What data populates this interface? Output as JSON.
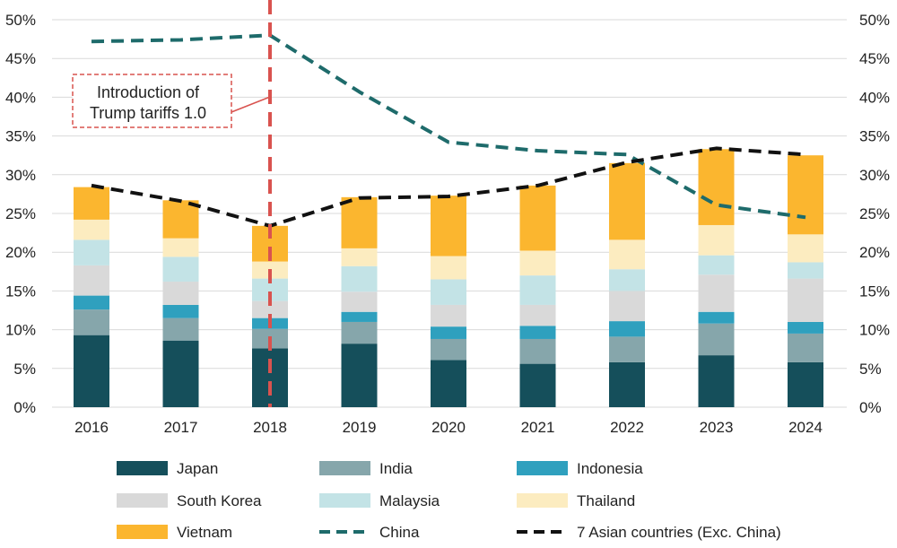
{
  "chart_data": {
    "type": "bar",
    "stacked": true,
    "categories": [
      "2016",
      "2017",
      "2018",
      "2019",
      "2020",
      "2021",
      "2022",
      "2023",
      "2024"
    ],
    "ylim": [
      0,
      50
    ],
    "y_ticks": [
      "0%",
      "5%",
      "10%",
      "15%",
      "20%",
      "25%",
      "30%",
      "35%",
      "40%",
      "45%",
      "50%"
    ],
    "grid": true,
    "secondary_axis": true,
    "series": [
      {
        "name": "Japan",
        "type": "bar",
        "color": "#154f5b",
        "values": [
          9.3,
          8.6,
          7.6,
          8.2,
          6.1,
          5.6,
          5.8,
          6.7,
          5.8
        ]
      },
      {
        "name": "India",
        "type": "bar",
        "color": "#86a6ab",
        "values": [
          3.3,
          2.9,
          2.5,
          2.8,
          2.7,
          3.2,
          3.3,
          4.1,
          3.7
        ]
      },
      {
        "name": "Indonesia",
        "type": "bar",
        "color": "#2fa0be",
        "values": [
          1.8,
          1.7,
          1.4,
          1.3,
          1.6,
          1.7,
          2.0,
          1.5,
          1.5
        ]
      },
      {
        "name": "South Korea",
        "type": "bar",
        "color": "#d9d9d9",
        "values": [
          3.9,
          3.0,
          2.2,
          2.6,
          2.8,
          2.7,
          3.9,
          4.8,
          5.6
        ]
      },
      {
        "name": "Malaysia",
        "type": "bar",
        "color": "#c3e3e6",
        "values": [
          3.3,
          3.2,
          2.9,
          3.3,
          3.3,
          3.8,
          2.8,
          2.5,
          2.1
        ]
      },
      {
        "name": "Thailand",
        "type": "bar",
        "color": "#fcecc0",
        "values": [
          2.6,
          2.4,
          2.2,
          2.3,
          3.0,
          3.2,
          3.8,
          3.9,
          3.6
        ]
      },
      {
        "name": "Vietnam",
        "type": "bar",
        "color": "#fbb62f",
        "values": [
          4.2,
          4.9,
          4.6,
          6.6,
          7.8,
          8.4,
          9.9,
          9.8,
          10.2
        ]
      },
      {
        "name": "China",
        "type": "line",
        "style": "dashed",
        "color": "#1e6b6b",
        "values": [
          47.2,
          47.4,
          48.0,
          40.7,
          34.2,
          33.1,
          32.6,
          26.1,
          24.5
        ]
      },
      {
        "name": "7 Asian countries (Exc. China)",
        "type": "line",
        "style": "dashed",
        "color": "#111111",
        "values": [
          28.6,
          26.6,
          23.4,
          27.0,
          27.2,
          28.6,
          31.6,
          33.4,
          32.6
        ]
      }
    ],
    "legend": {
      "placement": "bottom",
      "labels": [
        "Japan",
        "India",
        "Indonesia",
        "South Korea",
        "Malaysia",
        "Thailand",
        " Vietnam",
        "China",
        "7 Asian countries (Exc. China)"
      ]
    },
    "annotation": {
      "lines": [
        "Introduction of",
        "Trump tariffs 1.0"
      ],
      "marker_category": "2018",
      "color": "#d9534f"
    }
  }
}
